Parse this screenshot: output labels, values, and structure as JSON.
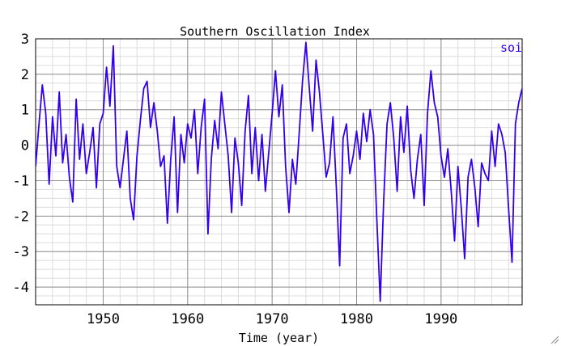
{
  "chart_data": {
    "type": "line",
    "title": "Southern Oscillation Index",
    "xlabel": "Time (year)",
    "ylabel": "",
    "xlim": [
      1942,
      1999.6
    ],
    "ylim": [
      -4.5,
      3
    ],
    "x_ticks": [
      1950,
      1960,
      1970,
      1980,
      1990
    ],
    "x_tick_labels": [
      "1950",
      "1960",
      "1970",
      "1980",
      "1990"
    ],
    "y_ticks": [
      3,
      2,
      1,
      0,
      -1,
      -2,
      -3,
      -4
    ],
    "y_tick_labels": [
      "3",
      "2",
      "1",
      "0",
      "-1",
      "-2",
      "-3",
      "-4"
    ],
    "x_minor_step": 2,
    "y_minor_step": 0.25,
    "grid": true,
    "legend_position": "top-right",
    "line_color": "#3300ee",
    "series": [
      {
        "name": "soi",
        "x": [
          1942.0,
          1942.4,
          1942.8,
          1943.2,
          1943.6,
          1944.0,
          1944.4,
          1944.8,
          1945.2,
          1945.6,
          1946.0,
          1946.4,
          1946.8,
          1947.2,
          1947.6,
          1948.0,
          1948.4,
          1948.8,
          1949.2,
          1949.6,
          1950.0,
          1950.4,
          1950.8,
          1951.2,
          1951.6,
          1952.0,
          1952.4,
          1952.8,
          1953.2,
          1953.6,
          1954.0,
          1954.4,
          1954.8,
          1955.2,
          1955.6,
          1956.0,
          1956.4,
          1956.8,
          1957.2,
          1957.6,
          1958.0,
          1958.4,
          1958.8,
          1959.2,
          1959.6,
          1960.0,
          1960.4,
          1960.8,
          1961.2,
          1961.6,
          1962.0,
          1962.4,
          1962.8,
          1963.2,
          1963.6,
          1964.0,
          1964.4,
          1964.8,
          1965.2,
          1965.6,
          1966.0,
          1966.4,
          1966.8,
          1967.2,
          1967.6,
          1968.0,
          1968.4,
          1968.8,
          1969.2,
          1969.6,
          1970.0,
          1970.4,
          1970.8,
          1971.2,
          1971.6,
          1972.0,
          1972.4,
          1972.8,
          1973.2,
          1973.6,
          1974.0,
          1974.4,
          1974.8,
          1975.2,
          1975.6,
          1976.0,
          1976.4,
          1976.8,
          1977.2,
          1977.6,
          1978.0,
          1978.4,
          1978.8,
          1979.2,
          1979.6,
          1980.0,
          1980.4,
          1980.8,
          1981.2,
          1981.6,
          1982.0,
          1982.4,
          1982.8,
          1983.2,
          1983.6,
          1984.0,
          1984.4,
          1984.8,
          1985.2,
          1985.6,
          1986.0,
          1986.4,
          1986.8,
          1987.2,
          1987.6,
          1988.0,
          1988.4,
          1988.8,
          1989.2,
          1989.6,
          1990.0,
          1990.4,
          1990.8,
          1991.2,
          1991.6,
          1992.0,
          1992.4,
          1992.8,
          1993.2,
          1993.6,
          1994.0,
          1994.4,
          1994.8,
          1995.2,
          1995.6,
          1996.0,
          1996.4,
          1996.8,
          1997.2,
          1997.6,
          1998.0,
          1998.4,
          1998.8,
          1999.2,
          1999.6
        ],
        "values": [
          -0.6,
          0.6,
          1.7,
          0.9,
          -1.1,
          0.8,
          -0.3,
          1.5,
          -0.5,
          0.3,
          -0.9,
          -1.6,
          1.3,
          -0.4,
          0.6,
          -0.8,
          -0.2,
          0.5,
          -1.2,
          0.6,
          0.9,
          2.2,
          1.1,
          2.8,
          -0.6,
          -1.2,
          -0.4,
          0.4,
          -1.5,
          -2.1,
          -0.3,
          0.7,
          1.6,
          1.8,
          0.5,
          1.2,
          0.4,
          -0.6,
          -0.3,
          -2.2,
          -0.4,
          0.8,
          -1.9,
          0.3,
          -0.5,
          0.6,
          0.2,
          1.0,
          -0.8,
          0.5,
          1.3,
          -2.5,
          -0.4,
          0.7,
          -0.1,
          1.5,
          0.6,
          -0.3,
          -1.9,
          0.2,
          -0.5,
          -1.7,
          0.4,
          1.4,
          -0.8,
          0.5,
          -1.0,
          0.3,
          -1.3,
          -0.2,
          0.9,
          2.1,
          0.8,
          1.7,
          -0.6,
          -1.9,
          -0.4,
          -1.1,
          0.3,
          1.8,
          2.9,
          1.6,
          0.4,
          2.4,
          1.5,
          0.3,
          -0.9,
          -0.5,
          0.8,
          -1.2,
          -3.4,
          0.2,
          0.6,
          -0.8,
          -0.3,
          0.4,
          -0.4,
          0.9,
          0.1,
          1.0,
          0.3,
          -2.1,
          -4.4,
          -1.6,
          0.6,
          1.2,
          0.2,
          -1.3,
          0.8,
          -0.2,
          1.1,
          -0.7,
          -1.5,
          -0.4,
          0.3,
          -1.7,
          0.9,
          2.1,
          1.2,
          0.8,
          -0.3,
          -0.9,
          -0.1,
          -1.3,
          -2.7,
          -0.6,
          -1.8,
          -3.2,
          -0.9,
          -0.4,
          -1.2,
          -2.3,
          -0.5,
          -0.8,
          -1.0,
          0.4,
          -0.6,
          0.6,
          0.3,
          -0.2,
          -1.8,
          -3.3,
          0.6,
          1.2,
          1.6
        ]
      }
    ]
  }
}
